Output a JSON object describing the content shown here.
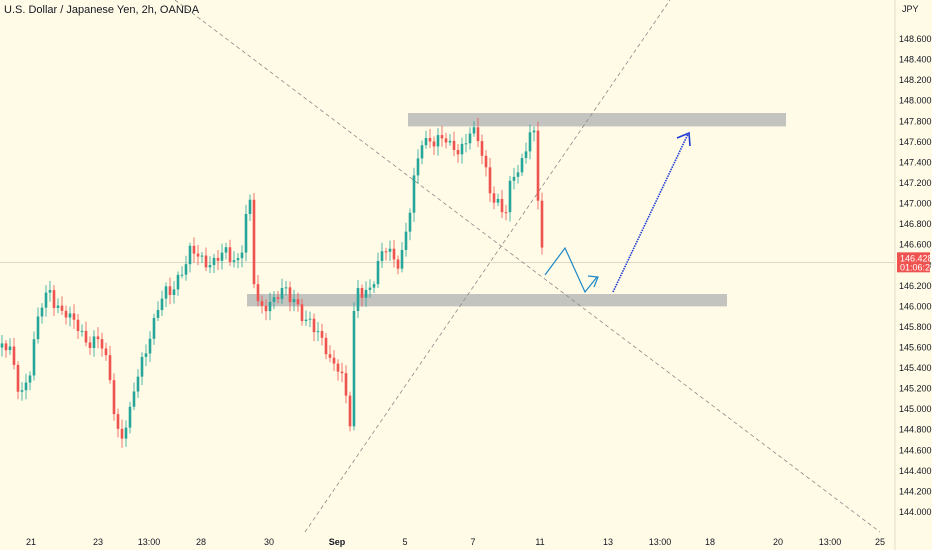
{
  "header": {
    "title": "U.S. Dollar / Japanese Yen, 2h, OANDA"
  },
  "axis": {
    "currency": "JPY"
  },
  "chart_data": {
    "type": "candlestick",
    "title": "U.S. Dollar / Japanese Yen, 2h, OANDA",
    "ylim": [
      144.0,
      148.8
    ],
    "y_ticks": [
      "148.600",
      "148.400",
      "148.200",
      "148.000",
      "147.800",
      "147.600",
      "147.400",
      "147.200",
      "147.000",
      "146.800",
      "146.600",
      "146.400",
      "146.200",
      "146.000",
      "145.800",
      "145.600",
      "145.400",
      "145.200",
      "145.000",
      "144.800",
      "144.600",
      "144.400",
      "144.200",
      "144.000"
    ],
    "x_ticks": [
      "21",
      "23",
      "13:00",
      "28",
      "30",
      "Sep",
      "5",
      "7",
      "11",
      "13",
      "13:00",
      "18",
      "20",
      "13:00",
      "25"
    ],
    "current_price": {
      "value": "146.428",
      "timer": "01:06:28",
      "color": "#ef5350"
    },
    "up_color": "#26a69a",
    "down_color": "#ef5350",
    "zones": [
      {
        "label": "resistance",
        "y_low": 147.75,
        "y_high": 147.88
      },
      {
        "label": "support",
        "y_low": 146.0,
        "y_high": 146.12
      }
    ],
    "trendlines": [
      {
        "label": "descending",
        "from": [
          5,
          149.0
        ],
        "to": [
          880,
          144.0
        ]
      },
      {
        "label": "ascending",
        "from": [
          305,
          144.0
        ],
        "to": [
          668,
          148.8
        ]
      }
    ],
    "projection": {
      "color_small": "#1e88c8",
      "color_large": "#1e3cd4"
    }
  }
}
